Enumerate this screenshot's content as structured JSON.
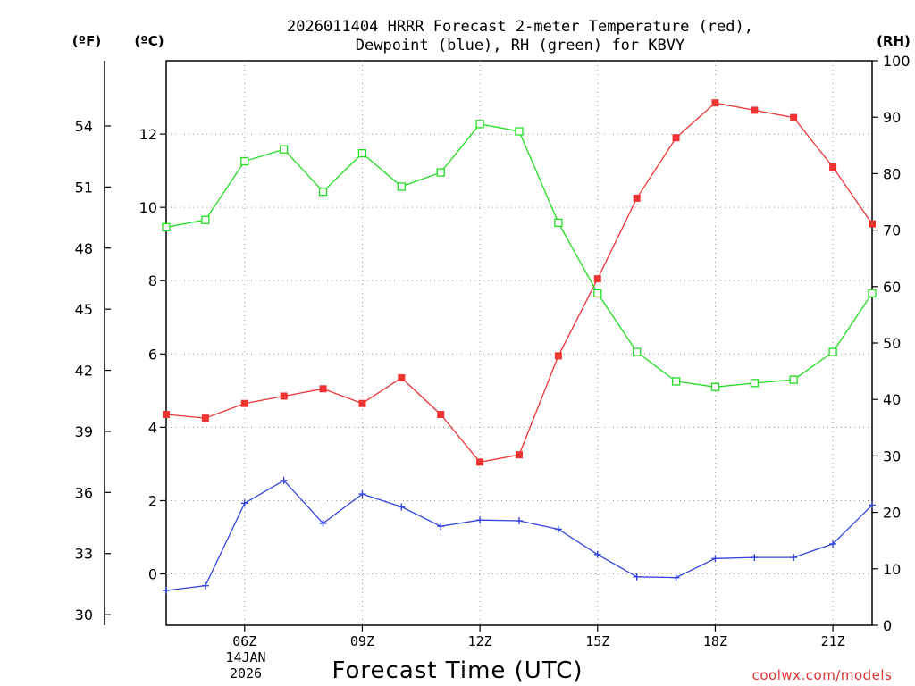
{
  "chart_data": {
    "type": "line",
    "title": "2026011404 HRRR Forecast 2-meter Temperature (red),",
    "subtitle": "Dewpoint (blue), RH (green) for KBVY",
    "xlabel": "Forecast Time (UTC)",
    "date_line1": "14JAN",
    "date_line2": "2026",
    "credit": "coolwx.com/models",
    "unit_f": "(ºF)",
    "unit_c": "(ºC)",
    "unit_rh": "(RH)",
    "x_hours": [
      4,
      5,
      6,
      7,
      8,
      9,
      10,
      11,
      12,
      13,
      14,
      15,
      16,
      17,
      18,
      19,
      20,
      21,
      22
    ],
    "x_ticks": [
      {
        "hour": 6,
        "label": "06Z"
      },
      {
        "hour": 9,
        "label": "09Z"
      },
      {
        "hour": 12,
        "label": "12Z"
      },
      {
        "hour": 15,
        "label": "15Z"
      },
      {
        "hour": 18,
        "label": "18Z"
      },
      {
        "hour": 21,
        "label": "21Z"
      }
    ],
    "xlim": [
      4,
      22
    ],
    "ylim_c": [
      -1.4,
      14
    ],
    "yticks_c": [
      0,
      2,
      4,
      6,
      8,
      10,
      12
    ],
    "yticks_f": [
      30,
      33,
      36,
      39,
      42,
      45,
      48,
      51,
      54
    ],
    "ylim_rh": [
      0,
      100
    ],
    "yticks_rh": [
      0,
      10,
      20,
      30,
      40,
      50,
      60,
      70,
      80,
      90,
      100
    ],
    "series": [
      {
        "name": "Temperature",
        "axis": "c",
        "color": "#ee3333",
        "marker": "filled-square",
        "values": [
          4.35,
          4.25,
          4.65,
          4.85,
          5.05,
          4.65,
          5.35,
          4.35,
          3.05,
          3.25,
          5.95,
          8.05,
          10.25,
          11.9,
          12.85,
          12.65,
          12.45,
          11.1,
          9.55
        ]
      },
      {
        "name": "Dewpoint",
        "axis": "c",
        "color": "#3344dd",
        "marker": "plus",
        "values": [
          -0.45,
          -0.32,
          1.93,
          2.55,
          1.38,
          2.18,
          1.83,
          1.3,
          1.47,
          1.45,
          1.22,
          0.53,
          -0.08,
          -0.1,
          0.42,
          0.45,
          0.45,
          0.82,
          1.88
        ]
      },
      {
        "name": "RH",
        "axis": "rh",
        "color": "#22dd22",
        "marker": "open-square",
        "values": [
          70.5,
          71.8,
          82.2,
          84.3,
          76.8,
          83.6,
          77.7,
          80.2,
          88.8,
          87.5,
          71.3,
          58.8,
          48.4,
          43.2,
          42.2,
          42.9,
          43.5,
          48.4,
          58.8
        ]
      }
    ]
  }
}
